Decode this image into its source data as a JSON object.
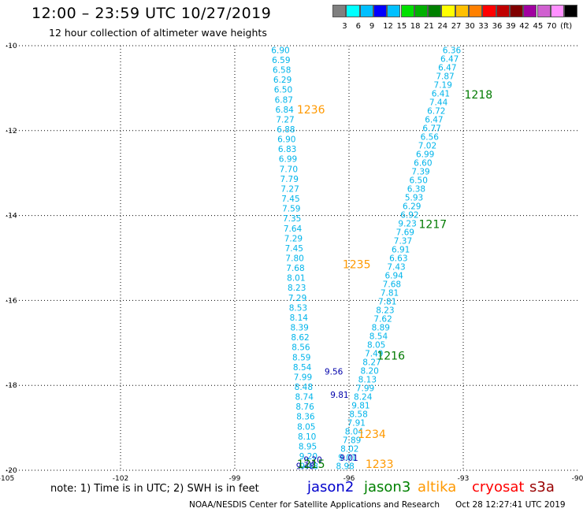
{
  "header": {
    "title": "12:00 – 23:59 UTC 10/27/2019",
    "subtitle": "12 hour collection of altimeter wave heights"
  },
  "colorbar": {
    "colors": [
      "#808080",
      "#00ffff",
      "#00bfff",
      "#0000ff",
      "#00c0ff",
      "#00e000",
      "#00b000",
      "#008000",
      "#ffff00",
      "#ffc000",
      "#ff8000",
      "#ff0000",
      "#c00000",
      "#800000",
      "#a000a0",
      "#d060d0",
      "#ff90ff",
      "#000000"
    ],
    "labels": [
      "3",
      "6",
      "9",
      "12",
      "15",
      "18",
      "21",
      "24",
      "27",
      "30",
      "33",
      "36",
      "39",
      "42",
      "45",
      "70",
      "(ft)"
    ]
  },
  "chart_data": {
    "type": "scatter",
    "xlim": [
      -105,
      -90
    ],
    "ylim": [
      -20,
      -10
    ],
    "x_ticks": [
      -105,
      -102,
      -99,
      -96,
      -93,
      -90
    ],
    "y_ticks": [
      -10,
      -12,
      -14,
      -16,
      -18,
      -20
    ],
    "grid": true,
    "orbits": [
      {
        "label": "1236",
        "x": -97.0,
        "y": -11.5,
        "color": "#ff9900"
      },
      {
        "label": "1218",
        "x": -92.6,
        "y": -11.15,
        "color": "#007a00"
      },
      {
        "label": "1217",
        "x": -93.8,
        "y": -14.2,
        "color": "#007a00"
      },
      {
        "label": "1235",
        "x": -95.8,
        "y": -15.15,
        "color": "#ff9900"
      },
      {
        "label": "1216",
        "x": -94.9,
        "y": -17.3,
        "color": "#007a00"
      },
      {
        "label": "1234",
        "x": -95.4,
        "y": -19.15,
        "color": "#ff9900"
      },
      {
        "label": "1233",
        "x": -95.2,
        "y": -19.85,
        "color": "#ff9900"
      },
      {
        "label": "1215",
        "x": -97.0,
        "y": -19.85,
        "color": "#007a00"
      }
    ],
    "tracks": [
      {
        "name": "altika",
        "color": "#00b4ea",
        "x0": -97.8,
        "y0": -10.1,
        "x1": -97.05,
        "y1": -19.9,
        "values": [
          "6.90",
          "6.59",
          "6.58",
          "6.29",
          "6.50",
          "6.87",
          "6.84",
          "7.27",
          "6.88",
          "6.90",
          "6.83",
          "6.99",
          "7.70",
          "7.79",
          "7.27",
          "7.45",
          "7.59",
          "7.35",
          "7.64",
          "7.29",
          "7.45",
          "7.80",
          "7.68",
          "8.01",
          "8.23",
          "7.29",
          "8.53",
          "8.14",
          "8.39",
          "8.62",
          "8.56",
          "8.59",
          "8.54",
          "7.99",
          "8.48",
          "8.74",
          "8.76",
          "8.36",
          "8.05",
          "8.10",
          "8.95",
          "9.20",
          "9.48"
        ]
      },
      {
        "name": "jason3",
        "color": "#00b4ea",
        "x0": -93.3,
        "y0": -10.1,
        "x1": -96.1,
        "y1": -19.9,
        "values": [
          "6.36",
          "6.47",
          "6.47",
          "7.87",
          "7.19",
          "6.41",
          "7.44",
          "6.72",
          "6.47",
          "6.77",
          "6.56",
          "7.02",
          "6.99",
          "6.60",
          "7.39",
          "6.50",
          "6.38",
          "5.93",
          "6.29",
          "6.92",
          "9.23",
          "7.69",
          "7.37",
          "6.91",
          "6.63",
          "7.43",
          "6.94",
          "7.68",
          "7.81",
          "7.81",
          "8.23",
          "7.62",
          "8.89",
          "8.54",
          "8.05",
          "7.49",
          "8.27",
          "8.20",
          "8.13",
          "7.99",
          "8.24",
          "9.81",
          "8.58",
          "7.91",
          "8.04",
          "7.89",
          "8.02",
          "9.01",
          "8.98"
        ]
      }
    ],
    "highlight_values": [
      {
        "value": "9.56",
        "x": -96.4,
        "y": -17.67
      },
      {
        "value": "9.81",
        "x": -96.25,
        "y": -18.22
      },
      {
        "value": "9.01",
        "x": -96.0,
        "y": -19.7
      },
      {
        "value": "9.20",
        "x": -96.95,
        "y": -19.75
      },
      {
        "value": "9.48",
        "x": -97.15,
        "y": -19.9
      }
    ]
  },
  "footer": {
    "note": "note:  1) Time is in UTC;  2) SWH is in feet",
    "satellites": [
      {
        "name": "jason2",
        "color": "#0000cc"
      },
      {
        "name": "jason3",
        "color": "#008000"
      },
      {
        "name": "altika",
        "color": "#ff9900"
      },
      {
        "name": "cryosat",
        "color": "#ff0000"
      },
      {
        "name": "s3a",
        "color": "#990000"
      }
    ],
    "credit": "NOAA/NESDIS Center for Satellite Applications and Research",
    "timestamp": "Oct 28 12:27:41 UTC 2019"
  }
}
